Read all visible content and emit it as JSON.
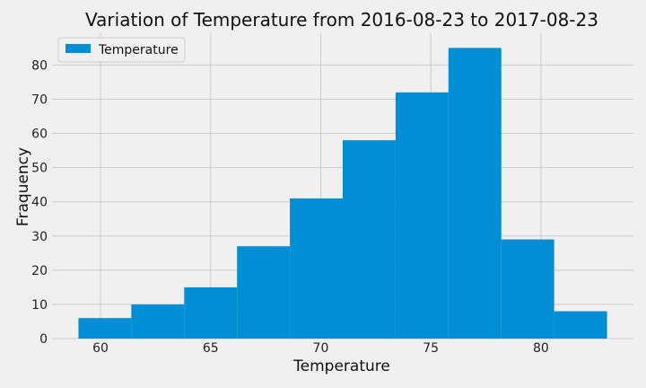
{
  "chart_data": {
    "type": "bar",
    "title": "Variation of Temperature from 2016-08-23 to 2017-08-23",
    "xlabel": "Temperature",
    "ylabel": "Fraquency",
    "bins": [
      {
        "start": 59.0,
        "end": 61.4,
        "count": 6
      },
      {
        "start": 61.4,
        "end": 63.8,
        "count": 10
      },
      {
        "start": 63.8,
        "end": 66.2,
        "count": 15
      },
      {
        "start": 66.2,
        "end": 68.6,
        "count": 27
      },
      {
        "start": 68.6,
        "end": 71.0,
        "count": 41
      },
      {
        "start": 71.0,
        "end": 73.4,
        "count": 58
      },
      {
        "start": 73.4,
        "end": 75.8,
        "count": 72
      },
      {
        "start": 75.8,
        "end": 78.2,
        "count": 85
      },
      {
        "start": 78.2,
        "end": 80.6,
        "count": 29
      },
      {
        "start": 80.6,
        "end": 83.0,
        "count": 8
      }
    ],
    "xlim": [
      57.8,
      84.2
    ],
    "ylim": [
      0,
      89.3
    ],
    "xticks": [
      60,
      65,
      70,
      75,
      80
    ],
    "yticks": [
      0,
      10,
      20,
      30,
      40,
      50,
      60,
      70,
      80
    ],
    "series_name": "Temperature",
    "color": "#008fd5",
    "grid": true,
    "legend_position": "top-left"
  }
}
